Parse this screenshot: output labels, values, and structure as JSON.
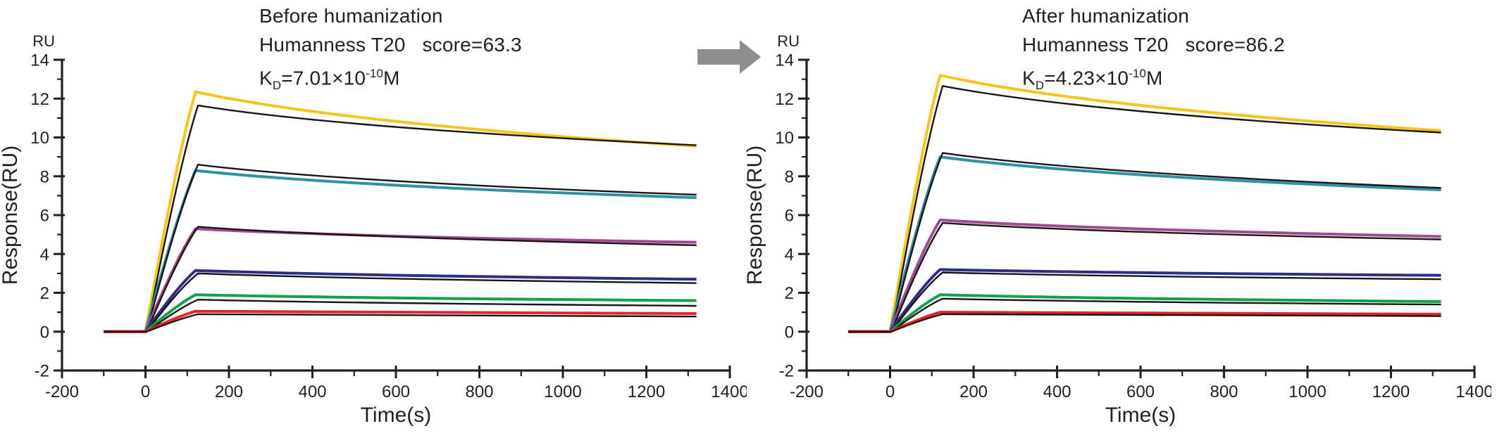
{
  "figure": {
    "background_color": "#ffffff",
    "text_color": "#231f20",
    "arrow": {
      "meaning": "before-to-after humanization",
      "color": "#8e8e8e"
    }
  },
  "chart_data": [
    {
      "type": "line",
      "title": "Before humanization",
      "subtitle": "Humanness T20   score=63.3",
      "kd_label": {
        "base": "K",
        "sub": "D",
        "eq": "=7.01×10",
        "exp": "-10",
        "unit": "M"
      },
      "corner_label": "RU",
      "xlabel": "Time(s)",
      "ylabel": "Response(RU)",
      "xlim": [
        -200,
        1400
      ],
      "ylim": [
        -2,
        14
      ],
      "xticks": [
        -200,
        0,
        200,
        400,
        600,
        800,
        1000,
        1200,
        1400
      ],
      "yticks": [
        -2,
        0,
        2,
        4,
        6,
        8,
        10,
        12,
        14
      ],
      "x_minor_step": 100,
      "y_minor_step": 1,
      "grid": false,
      "legend": "none",
      "fit_color": "#1a1414",
      "timeline": {
        "baseline_start": -100,
        "inject_start": 0,
        "inject_end": 120,
        "end": 1320
      },
      "series": [
        {
          "name": "yellow",
          "color": "#f5c51d",
          "response": {
            "baseline": 0,
            "peak": 12.35,
            "end": 9.55
          },
          "fit": {
            "peak": 11.65,
            "end": 9.6
          }
        },
        {
          "name": "teal",
          "color": "#2f92a0",
          "response": {
            "baseline": 0,
            "peak": 8.3,
            "end": 6.9
          },
          "fit": {
            "peak": 8.6,
            "end": 7.05
          }
        },
        {
          "name": "magenta",
          "color": "#a04b91",
          "response": {
            "baseline": 0,
            "peak": 5.3,
            "end": 4.6
          },
          "fit": {
            "peak": 5.4,
            "end": 4.45
          }
        },
        {
          "name": "blue",
          "color": "#2d2d8c",
          "response": {
            "baseline": 0,
            "peak": 3.15,
            "end": 2.7
          },
          "fit": {
            "peak": 3.0,
            "end": 2.5
          }
        },
        {
          "name": "green",
          "color": "#14a04b",
          "response": {
            "baseline": 0,
            "peak": 1.9,
            "end": 1.6
          },
          "fit": {
            "peak": 1.65,
            "end": 1.33
          }
        },
        {
          "name": "red",
          "color": "#e62328",
          "response": {
            "baseline": 0,
            "peak": 1.05,
            "end": 0.93
          },
          "fit": {
            "peak": 0.9,
            "end": 0.78
          }
        }
      ]
    },
    {
      "type": "line",
      "title": "After humanization",
      "subtitle": "Humanness T20   score=86.2",
      "kd_label": {
        "base": "K",
        "sub": "D",
        "eq": "=4.23×10",
        "exp": "-10",
        "unit": "M"
      },
      "corner_label": "RU",
      "xlabel": "Time(s)",
      "ylabel": "Response(RU)",
      "xlim": [
        -200,
        1400
      ],
      "ylim": [
        -2,
        14
      ],
      "xticks": [
        -200,
        0,
        200,
        400,
        600,
        800,
        1000,
        1200,
        1400
      ],
      "yticks": [
        -2,
        0,
        2,
        4,
        6,
        8,
        10,
        12,
        14
      ],
      "x_minor_step": 100,
      "y_minor_step": 1,
      "grid": false,
      "legend": "none",
      "fit_color": "#1a1414",
      "timeline": {
        "baseline_start": -100,
        "inject_start": 0,
        "inject_end": 120,
        "end": 1320
      },
      "series": [
        {
          "name": "yellow",
          "color": "#f5c51d",
          "response": {
            "baseline": 0,
            "peak": 13.2,
            "end": 10.35
          },
          "fit": {
            "peak": 12.65,
            "end": 10.25
          }
        },
        {
          "name": "teal",
          "color": "#2f92a0",
          "response": {
            "baseline": 0,
            "peak": 9.0,
            "end": 7.3
          },
          "fit": {
            "peak": 9.2,
            "end": 7.4
          }
        },
        {
          "name": "magenta",
          "color": "#a04b91",
          "response": {
            "baseline": 0,
            "peak": 5.75,
            "end": 4.9
          },
          "fit": {
            "peak": 5.6,
            "end": 4.75
          }
        },
        {
          "name": "blue",
          "color": "#2d2d8c",
          "response": {
            "baseline": 0,
            "peak": 3.2,
            "end": 2.9
          },
          "fit": {
            "peak": 3.05,
            "end": 2.7
          }
        },
        {
          "name": "green",
          "color": "#14a04b",
          "response": {
            "baseline": 0,
            "peak": 1.9,
            "end": 1.55
          },
          "fit": {
            "peak": 1.7,
            "end": 1.4
          }
        },
        {
          "name": "red",
          "color": "#e62328",
          "response": {
            "baseline": 0,
            "peak": 1.0,
            "end": 0.9
          },
          "fit": {
            "peak": 0.9,
            "end": 0.8
          }
        }
      ]
    }
  ]
}
